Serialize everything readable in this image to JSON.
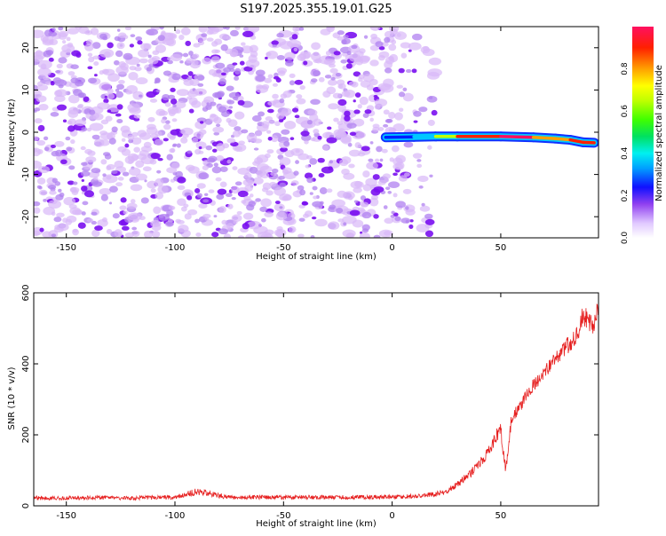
{
  "figure_title": "S197.2025.355.19.01.G25",
  "colors": {
    "axis": "#000000",
    "snr_line": "#e62020",
    "scatter_light": "#d8b8f8",
    "scatter_mid": "#b080f0",
    "scatter_dark": "#7a10f0",
    "background": "#ffffff"
  },
  "chart_data": [
    {
      "type": "heatmap",
      "title": "S197.2025.355.19.01.G25",
      "xlabel": "Height of straight line (km)",
      "ylabel": "Frequency (Hz)",
      "xlim": [
        -165,
        95
      ],
      "ylim": [
        -25,
        25
      ],
      "x_ticks": [
        -150,
        -100,
        -50,
        0,
        50
      ],
      "y_ticks": [
        -20,
        -10,
        0,
        10,
        20
      ],
      "noise_region": {
        "x": [
          -165,
          20
        ],
        "y": [
          -25,
          25
        ],
        "description": "low-amplitude noise"
      },
      "signal_track": [
        {
          "x": -3,
          "y": -1.2,
          "amplitude": 0.08
        },
        {
          "x": 10,
          "y": -1.1,
          "amplitude": 0.2
        },
        {
          "x": 20,
          "y": -1.0,
          "amplitude": 0.35
        },
        {
          "x": 30,
          "y": -1.0,
          "amplitude": 0.75
        },
        {
          "x": 50,
          "y": -1.0,
          "amplitude": 0.95
        },
        {
          "x": 65,
          "y": -1.2,
          "amplitude": 0.9
        },
        {
          "x": 75,
          "y": -1.5,
          "amplitude": 0.5
        },
        {
          "x": 82,
          "y": -1.8,
          "amplitude": 0.85
        },
        {
          "x": 88,
          "y": -2.4,
          "amplitude": 0.9
        },
        {
          "x": 93,
          "y": -2.5,
          "amplitude": 0.7
        }
      ],
      "colorbar": {
        "label": "Normalized spectral amplitude",
        "range": [
          0,
          1
        ],
        "ticks": [
          "0.0",
          "0.2",
          "0.4",
          "0.6",
          "0.8"
        ]
      }
    },
    {
      "type": "line",
      "xlabel": "Height of straight line (km)",
      "ylabel": "SNR (10 * v/v)",
      "xlim": [
        -165,
        95
      ],
      "ylim": [
        0,
        600
      ],
      "x_ticks": [
        -150,
        -100,
        -50,
        0,
        50
      ],
      "y_ticks": [
        0,
        200,
        400,
        600
      ],
      "series": [
        {
          "name": "SNR",
          "x": [
            -165,
            -150,
            -125,
            -100,
            -90,
            -75,
            -50,
            -25,
            0,
            10,
            20,
            25,
            30,
            35,
            40,
            45,
            48,
            50,
            52,
            53,
            55,
            60,
            65,
            70,
            75,
            80,
            85,
            88,
            90,
            93,
            95
          ],
          "y": [
            22,
            22,
            22,
            24,
            40,
            24,
            24,
            24,
            25,
            27,
            33,
            40,
            60,
            85,
            115,
            160,
            200,
            215,
            110,
            130,
            250,
            290,
            340,
            375,
            410,
            445,
            480,
            540,
            520,
            500,
            560
          ],
          "noise_amplitude": [
            6,
            6,
            6,
            6,
            10,
            6,
            6,
            6,
            6,
            6,
            7,
            9,
            10,
            12,
            14,
            16,
            20,
            22,
            18,
            18,
            18,
            18,
            18,
            20,
            22,
            24,
            26,
            30,
            32,
            32,
            32
          ]
        }
      ]
    }
  ]
}
